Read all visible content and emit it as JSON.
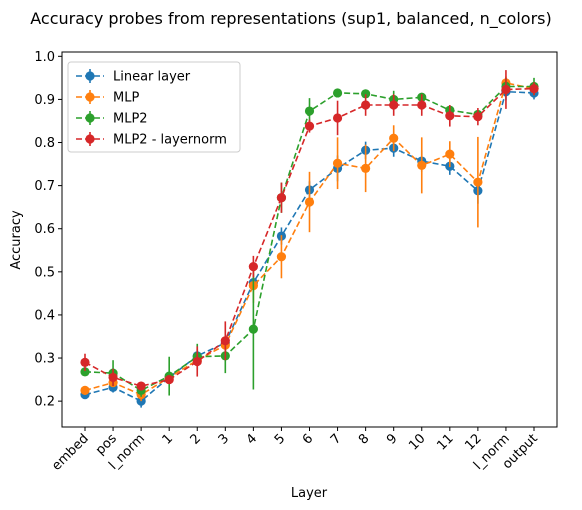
{
  "chart_data": {
    "type": "line",
    "title": "Accuracy probes from representations (sup1, balanced, n_colors)",
    "xlabel": "Layer",
    "ylabel": "Accuracy",
    "ylim": [
      0.14,
      1.01
    ],
    "yticks": [
      "0.2",
      "0.3",
      "0.4",
      "0.5",
      "0.6",
      "0.7",
      "0.8",
      "0.9",
      "1.0"
    ],
    "categories": [
      "embed",
      "pos",
      "l_norm",
      "1",
      "2",
      "3",
      "4",
      "5",
      "6",
      "7",
      "8",
      "9",
      "10",
      "11",
      "12",
      "l_norm",
      "output"
    ],
    "legend_position": "top-left",
    "grid": false,
    "series": [
      {
        "name": "Linear layer",
        "color": "#1f77b4",
        "values": [
          0.215,
          0.232,
          0.2,
          0.255,
          0.305,
          0.335,
          0.475,
          0.583,
          0.69,
          0.74,
          0.782,
          0.787,
          0.757,
          0.745,
          0.688,
          0.918,
          0.915
        ],
        "errors": [
          0.008,
          0.012,
          0.015,
          0.01,
          0.015,
          0.02,
          0.02,
          0.02,
          0.02,
          0.03,
          0.02,
          0.02,
          0.025,
          0.02,
          0.03,
          0.02,
          0.015
        ]
      },
      {
        "name": "MLP",
        "color": "#ff7f0e",
        "values": [
          0.225,
          0.243,
          0.215,
          0.255,
          0.295,
          0.33,
          0.468,
          0.535,
          0.662,
          0.752,
          0.74,
          0.81,
          0.747,
          0.773,
          0.708,
          0.938,
          0.925
        ],
        "errors": [
          0.01,
          0.01,
          0.015,
          0.01,
          0.015,
          0.015,
          0.04,
          0.05,
          0.07,
          0.06,
          0.055,
          0.03,
          0.065,
          0.03,
          0.105,
          0.015,
          0.015
        ]
      },
      {
        "name": "MLP2",
        "color": "#2ca02c",
        "values": [
          0.268,
          0.265,
          0.225,
          0.258,
          0.303,
          0.305,
          0.367,
          0.672,
          0.873,
          0.915,
          0.913,
          0.9,
          0.905,
          0.875,
          0.865,
          0.93,
          0.93
        ],
        "errors": [
          0.01,
          0.03,
          0.015,
          0.045,
          0.03,
          0.04,
          0.14,
          0.035,
          0.03,
          0.01,
          0.01,
          0.02,
          0.01,
          0.01,
          0.01,
          0.02,
          0.02
        ]
      },
      {
        "name": "MLP2 - layernorm",
        "color": "#d62728",
        "values": [
          0.29,
          0.255,
          0.235,
          0.25,
          0.292,
          0.34,
          0.512,
          0.672,
          0.838,
          0.857,
          0.887,
          0.887,
          0.887,
          0.862,
          0.86,
          0.923,
          0.925
        ],
        "errors": [
          0.02,
          0.02,
          0.01,
          0.01,
          0.035,
          0.045,
          0.025,
          0.035,
          0.015,
          0.04,
          0.025,
          0.025,
          0.025,
          0.025,
          0.02,
          0.045,
          0.015
        ]
      }
    ]
  }
}
